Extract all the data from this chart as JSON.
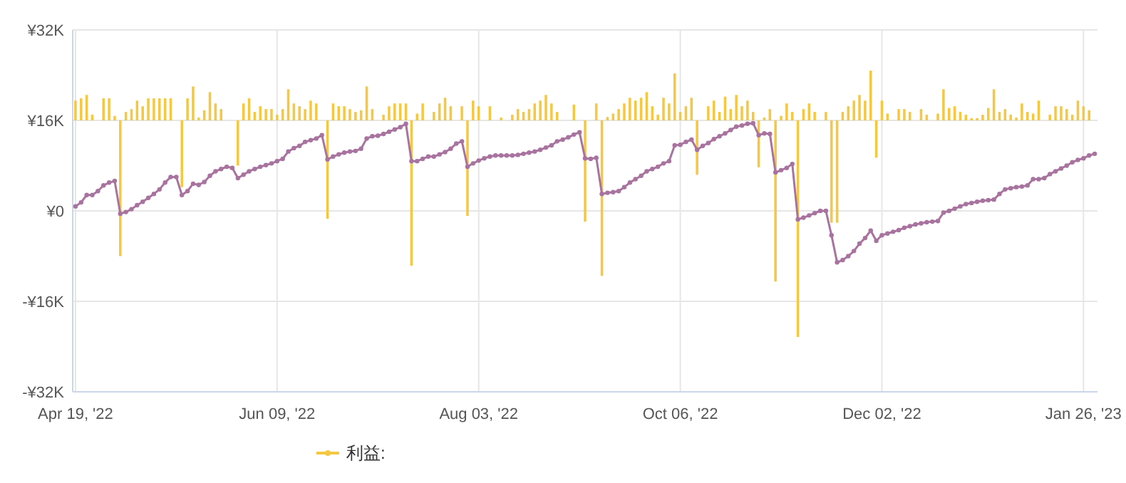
{
  "chart_data": {
    "type": "bar",
    "grid": true,
    "legend": "bottom",
    "categories": [
      "Apr 19, '22",
      null,
      null,
      null,
      null,
      null,
      null,
      null,
      null,
      null,
      null,
      null,
      null,
      null,
      null,
      null,
      null,
      null,
      null,
      null,
      null,
      null,
      null,
      null,
      null,
      null,
      null,
      null,
      null,
      null,
      null,
      null,
      null,
      null,
      null,
      null,
      "Jun 09, '22",
      null,
      null,
      null,
      null,
      null,
      null,
      null,
      null,
      null,
      null,
      null,
      null,
      null,
      null,
      null,
      null,
      null,
      null,
      null,
      null,
      null,
      null,
      null,
      null,
      null,
      null,
      null,
      null,
      null,
      null,
      null,
      null,
      null,
      null,
      null,
      "Aug 03, '22",
      null,
      null,
      null,
      null,
      null,
      null,
      null,
      null,
      null,
      null,
      null,
      null,
      null,
      null,
      null,
      null,
      null,
      null,
      null,
      null,
      null,
      null,
      null,
      null,
      null,
      null,
      null,
      null,
      null,
      null,
      null,
      null,
      null,
      null,
      null,
      "Oct 06, '22",
      null,
      null,
      null,
      null,
      null,
      null,
      null,
      null,
      null,
      null,
      null,
      null,
      null,
      null,
      null,
      null,
      null,
      null,
      null,
      null,
      null,
      null,
      null,
      null,
      null,
      null,
      null,
      null,
      null,
      null,
      null,
      null,
      null,
      null,
      null,
      "Dec 02, '22",
      null,
      null,
      null,
      null,
      null,
      null,
      null,
      null,
      null,
      null,
      null,
      null,
      null,
      null,
      null,
      null,
      null,
      null,
      null,
      null,
      null,
      null,
      null,
      null,
      null,
      null,
      null,
      null,
      null,
      null,
      null,
      null,
      null,
      null,
      null,
      "Jan 26, '23",
      null,
      null
    ],
    "ylim": [
      -32000,
      32000
    ],
    "yticks": [
      {
        "value": -32000,
        "label": "-¥32K"
      },
      {
        "value": -16000,
        "label": "-¥16K"
      },
      {
        "value": 0,
        "label": "¥0"
      },
      {
        "value": 16000,
        "label": "¥16K"
      },
      {
        "value": 32000,
        "label": "¥32K"
      }
    ],
    "series": [
      {
        "name": "利益:",
        "color": "#f5c842",
        "base": [
          16000,
          16000,
          16000,
          16000,
          null,
          16000,
          16000,
          16000,
          16000,
          16000,
          16000,
          16000,
          16000,
          16000,
          16000,
          16000,
          16000,
          16000,
          null,
          16000,
          16000,
          16000,
          16000,
          16000,
          16000,
          16000,
          16000,
          null,
          null,
          16000,
          16000,
          16000,
          16000,
          16000,
          16000,
          16000,
          16000,
          16000,
          16000,
          16000,
          16000,
          16000,
          16000,
          16000,
          null,
          16000,
          16000,
          16000,
          16000,
          16000,
          16000,
          16000,
          16000,
          16000,
          null,
          16000,
          16000,
          16000,
          16000,
          16000,
          16000,
          16000,
          16000,
          null,
          16000,
          16000,
          16000,
          16000,
          null,
          16000,
          16000,
          16000,
          16000,
          null,
          16000,
          null,
          16000,
          null,
          16000,
          16000,
          16000,
          16000,
          16000,
          16000,
          16000,
          16000,
          16000,
          null,
          null,
          16000,
          null,
          16000,
          null,
          16000,
          16000,
          16000,
          16000,
          16000,
          16000,
          16000,
          16000,
          16000,
          16000,
          16000,
          16000,
          16000,
          16000,
          16000,
          16000,
          16000,
          16000,
          16000,
          null,
          16000,
          16000,
          16000,
          16000,
          16000,
          16000,
          16000,
          16000,
          16000,
          16000,
          16000,
          16000,
          16000,
          16000,
          16000,
          16000,
          16000,
          16000,
          16000,
          16000,
          null,
          16000,
          16000,
          16000,
          16000,
          16000,
          16000,
          16000,
          16000,
          16000,
          16000,
          16000,
          16000,
          null,
          16000,
          16000,
          16000,
          null,
          16000,
          16000,
          null,
          16000,
          16000,
          16000,
          16000,
          16000,
          16000,
          16000,
          16000,
          16000,
          16000,
          16000,
          16000,
          16000,
          16000,
          16000,
          16000,
          16000,
          16000,
          16000,
          null,
          16000,
          16000,
          16000,
          16000,
          16000,
          16000,
          16000,
          16000,
          null
        ],
        "values": [
          3500,
          3900,
          4500,
          1000,
          null,
          3900,
          3900,
          800,
          -24000,
          1500,
          2000,
          3500,
          2500,
          3900,
          3900,
          3900,
          3900,
          3900,
          null,
          -11800,
          3900,
          6000,
          500,
          1800,
          5000,
          3000,
          2000,
          null,
          null,
          -8000,
          3000,
          3900,
          1500,
          2500,
          2000,
          2000,
          1000,
          2000,
          5500,
          3000,
          2500,
          2000,
          3500,
          3000,
          null,
          -17400,
          3000,
          2500,
          2500,
          2000,
          1500,
          1800,
          6000,
          2000,
          null,
          1000,
          2500,
          3000,
          3000,
          3000,
          -25700,
          1200,
          3000,
          null,
          1500,
          3000,
          4000,
          2500,
          null,
          2500,
          -16900,
          3500,
          2500,
          null,
          2500,
          null,
          500,
          null,
          1000,
          2000,
          1500,
          2000,
          3000,
          3500,
          4500,
          3000,
          1500,
          null,
          null,
          2800,
          null,
          -17900,
          null,
          3000,
          -27500,
          600,
          1200,
          2000,
          3000,
          4000,
          3500,
          4000,
          5000,
          2500,
          1000,
          4000,
          3000,
          8300,
          1500,
          2500,
          4000,
          -9600,
          null,
          2500,
          3500,
          1500,
          4200,
          2000,
          4500,
          2500,
          3500,
          1500,
          -8300,
          500,
          2000,
          -28500,
          800,
          3000,
          1500,
          -38300,
          2000,
          3000,
          1500,
          null,
          1500,
          -18100,
          -18100,
          1500,
          2500,
          3500,
          4500,
          3500,
          8800,
          -6600,
          3500,
          1200,
          null,
          2000,
          2000,
          1500,
          null,
          2000,
          1000,
          null,
          1200,
          5500,
          2200,
          2500,
          1500,
          1000,
          400,
          400,
          1000,
          2200,
          5500,
          1500,
          2000,
          1000,
          500,
          3000,
          1500,
          1200,
          3500,
          null,
          1000,
          2500,
          2500,
          2000,
          1000,
          3500,
          2500,
          1800,
          null
        ]
      },
      {
        "type": "line",
        "color": "#a8739e",
        "marker": "circle",
        "values": [
          800,
          1500,
          2800,
          2800,
          3500,
          4500,
          5000,
          5300,
          -500,
          -200,
          300,
          1000,
          1600,
          2300,
          3000,
          3800,
          5000,
          6000,
          6000,
          2800,
          3500,
          4800,
          4600,
          5100,
          6200,
          7000,
          7400,
          7800,
          7600,
          5800,
          6400,
          7000,
          7400,
          7800,
          8100,
          8400,
          8800,
          9200,
          10500,
          11100,
          11500,
          12200,
          12500,
          12800,
          13400,
          9100,
          9600,
          10000,
          10300,
          10500,
          10600,
          11000,
          12800,
          13200,
          13300,
          13600,
          14000,
          14400,
          14800,
          15400,
          8800,
          8800,
          9200,
          9600,
          9600,
          10000,
          10400,
          11000,
          11900,
          12300,
          7800,
          8400,
          8900,
          9300,
          9600,
          9800,
          9800,
          9800,
          9800,
          9900,
          10100,
          10300,
          10500,
          10800,
          11200,
          11600,
          12300,
          12600,
          13000,
          13500,
          13900,
          9300,
          9200,
          9400,
          3000,
          3200,
          3300,
          3500,
          4200,
          5000,
          5600,
          6200,
          7000,
          7400,
          7800,
          8400,
          8800,
          11600,
          11700,
          12200,
          12600,
          10800,
          11500,
          12000,
          12700,
          13200,
          13700,
          14300,
          14900,
          15100,
          15400,
          15500,
          13400,
          13700,
          13600,
          6800,
          7200,
          7600,
          8300,
          -1500,
          -1200,
          -800,
          -400,
          0,
          0,
          -4300,
          -9100,
          -8700,
          -8000,
          -7100,
          -5800,
          -4800,
          -3500,
          -5300,
          -4300,
          -4000,
          -3700,
          -3400,
          -3000,
          -2700,
          -2400,
          -2200,
          -2000,
          -1900,
          -1800,
          -300,
          0,
          400,
          800,
          1200,
          1400,
          1600,
          1800,
          1900,
          2000,
          3000,
          3800,
          4000,
          4200,
          4300,
          4500,
          5600,
          5600,
          5800,
          6500,
          7000,
          7500,
          8000,
          8600,
          9000,
          9300,
          9800,
          10100
        ]
      }
    ]
  }
}
